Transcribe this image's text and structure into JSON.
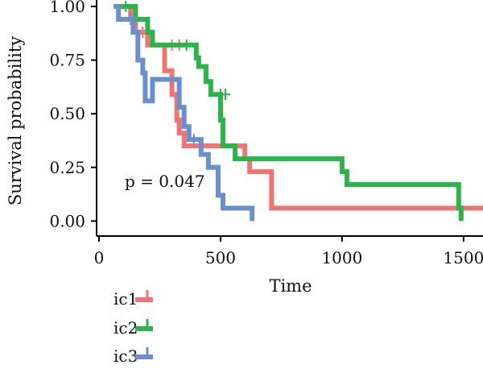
{
  "chart_data": {
    "type": "line",
    "subtype": "kaplan-meier survival curves",
    "xlabel": "Time",
    "ylabel": "Survival probability",
    "xlim": [
      -10,
      1580
    ],
    "ylim": [
      -0.07,
      1.03
    ],
    "x_ticks": [
      0,
      500,
      1000,
      1500
    ],
    "x_tick_labels": [
      "0",
      "500",
      "1000",
      "1500"
    ],
    "y_ticks": [
      0,
      0.25,
      0.5,
      0.75,
      1
    ],
    "y_tick_labels": [
      "0.00",
      "0.25",
      "0.50",
      "0.75",
      "1.00"
    ],
    "annotation": "p = 0.047",
    "legend_position": "bottom-left",
    "series": [
      {
        "name": "ic1",
        "color": "#F07470",
        "steps": [
          [
            60,
            1.0
          ],
          [
            130,
            0.94
          ],
          [
            150,
            0.88
          ],
          [
            200,
            0.82
          ],
          [
            270,
            0.7
          ],
          [
            300,
            0.59
          ],
          [
            320,
            0.47
          ],
          [
            330,
            0.41
          ],
          [
            350,
            0.35
          ],
          [
            410,
            0.35
          ],
          [
            570,
            0.35
          ],
          [
            600,
            0.29
          ],
          [
            620,
            0.23
          ],
          [
            710,
            0.06
          ],
          [
            1580,
            0.06
          ]
        ],
        "end_x": 1580,
        "censored": [
          [
            180,
            0.88
          ],
          [
            300,
            0.82
          ],
          [
            330,
            0.82
          ]
        ]
      },
      {
        "name": "ic2",
        "color": "#2BB44A",
        "steps": [
          [
            60,
            1.0
          ],
          [
            150,
            0.94
          ],
          [
            200,
            0.88
          ],
          [
            220,
            0.82
          ],
          [
            400,
            0.76
          ],
          [
            410,
            0.72
          ],
          [
            440,
            0.65
          ],
          [
            460,
            0.59
          ],
          [
            500,
            0.47
          ],
          [
            510,
            0.35
          ],
          [
            560,
            0.29
          ],
          [
            1000,
            0.23
          ],
          [
            1020,
            0.17
          ],
          [
            1480,
            0.06
          ],
          [
            1490,
            0.0
          ]
        ],
        "end_x": 1490,
        "censored": [
          [
            110,
            1.0
          ],
          [
            360,
            0.82
          ],
          [
            500,
            0.59
          ],
          [
            520,
            0.59
          ]
        ]
      },
      {
        "name": "ic3",
        "color": "#6A8FCE",
        "steps": [
          [
            60,
            1.0
          ],
          [
            80,
            0.94
          ],
          [
            140,
            0.88
          ],
          [
            160,
            0.75
          ],
          [
            180,
            0.69
          ],
          [
            190,
            0.56
          ],
          [
            220,
            0.66
          ],
          [
            330,
            0.53
          ],
          [
            350,
            0.44
          ],
          [
            370,
            0.38
          ],
          [
            420,
            0.31
          ],
          [
            450,
            0.25
          ],
          [
            490,
            0.12
          ],
          [
            510,
            0.06
          ],
          [
            630,
            0.0
          ]
        ],
        "end_x": 630,
        "censored": [
          [
            130,
            0.94
          ],
          [
            390,
            0.38
          ]
        ]
      }
    ]
  }
}
